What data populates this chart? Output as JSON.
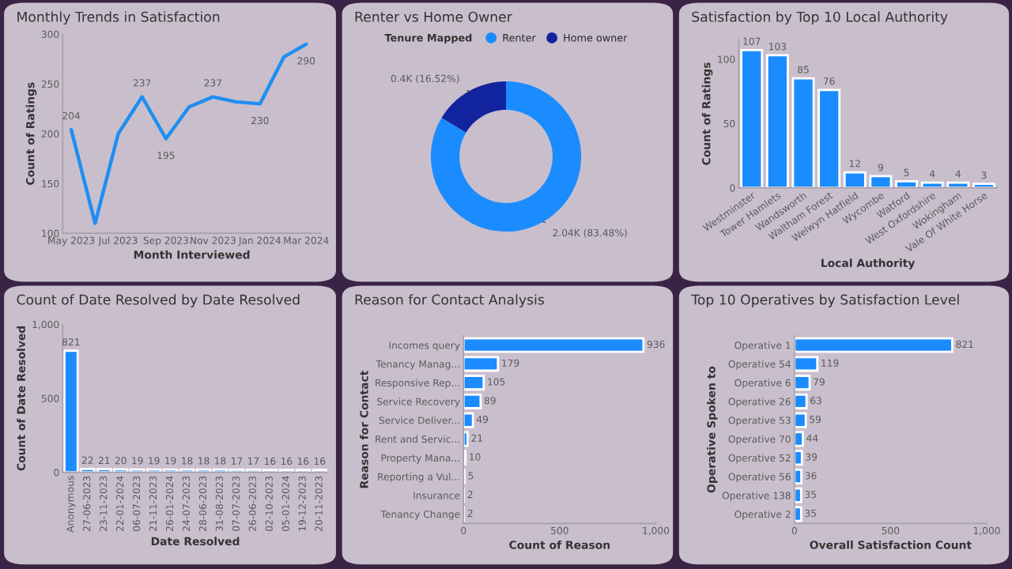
{
  "chart_data": [
    {
      "type": "line",
      "title": "Monthly Trends in Satisfaction",
      "xlabel": "Month Interviewed",
      "ylabel": "Count of Ratings",
      "x": [
        "2023-05",
        "2023-06",
        "2023-07",
        "2023-08",
        "2023-09",
        "2023-10",
        "2023-11",
        "2023-12",
        "2024-01",
        "2024-02",
        "2024-03"
      ],
      "values": [
        204,
        110,
        200,
        237,
        195,
        227,
        237,
        232,
        230,
        277,
        290
      ],
      "value_labels": [
        "204",
        null,
        null,
        "237",
        "195",
        null,
        "237",
        null,
        "230",
        null,
        "290"
      ],
      "color": "#1f8ef1",
      "marker": "none",
      "line_style": "solid",
      "xlim": [
        "2023-04-20",
        "2024-03-20"
      ],
      "xticks": [
        {
          "value": "2023-05",
          "label": "May 2023"
        },
        {
          "value": "2023-07",
          "label": "Jul 2023"
        },
        {
          "value": "2023-09",
          "label": "Sep 2023"
        },
        {
          "value": "2023-11",
          "label": "Nov 2023"
        },
        {
          "value": "2024-01",
          "label": "Jan 2024"
        },
        {
          "value": "2024-03",
          "label": "Mar 2024"
        }
      ],
      "ylim": [
        100,
        300
      ],
      "yticks": [
        100,
        150,
        200,
        250,
        300
      ]
    },
    {
      "type": "donut",
      "title": "Renter vs Home Owner",
      "legend_title": "Tenure Mapped",
      "legend": "top",
      "categories": [
        "Renter",
        "Home owner"
      ],
      "values": [
        2040,
        400
      ],
      "colors": [
        "#1a8cff",
        "#12239e"
      ],
      "value_labels": [
        "2.04K (83.48%)",
        "0.4K (16.52%)"
      ]
    },
    {
      "type": "bar",
      "title": "Satisfaction by Top 10 Local Authority",
      "xlabel": "Local Authority",
      "ylabel": "Count of Ratings",
      "categories": [
        "Westminster",
        "Tower Hamlets",
        "Wandsworth",
        "Waltham Forest",
        "Welwyn Hatfield",
        "Wycombe",
        "Watford",
        "West Oxfordshire",
        "Wokingham",
        "Vale Of White Horse"
      ],
      "values": [
        107,
        103,
        85,
        76,
        12,
        9,
        5,
        4,
        4,
        3
      ],
      "color": "#1a8cff",
      "data_labels": true,
      "ylim": [
        0,
        115
      ],
      "yticks": [
        0,
        50,
        100
      ]
    },
    {
      "type": "bar",
      "title": "Count of Date Resolved by Date Resolved",
      "xlabel": "Date Resolved",
      "ylabel": "Count of Date Resolved",
      "categories": [
        "Anonymous",
        "27-06-2023",
        "23-11-2023",
        "22-01-2024",
        "06-07-2023",
        "21-11-2023",
        "26-01-2024",
        "24-07-2023",
        "28-06-2023",
        "31-08-2023",
        "07-07-2023",
        "26-06-2023",
        "02-10-2023",
        "05-01-2024",
        "19-12-2023",
        "20-11-2023"
      ],
      "values": [
        821,
        22,
        21,
        20,
        19,
        19,
        19,
        18,
        18,
        18,
        17,
        17,
        16,
        16,
        16,
        16
      ],
      "color": "#1a8cff",
      "data_labels": true,
      "ylim": [
        0,
        1000
      ],
      "yticks": [
        0,
        500,
        {
          "value": 1000,
          "label": "1,000"
        }
      ]
    },
    {
      "type": "bar",
      "orientation": "horizontal",
      "title": "Reason for Contact Analysis",
      "xlabel": "Count of Reason",
      "ylabel": "Reason for Contact",
      "categories": [
        "Incomes query",
        "Tenancy Manag...",
        "Responsive Rep...",
        "Service Recovery",
        "Service Deliver...",
        "Rent and Servic...",
        "Property Mana...",
        "Reporting a Vul...",
        "Insurance",
        "Tenancy Change"
      ],
      "values": [
        936,
        179,
        105,
        89,
        49,
        21,
        10,
        5,
        2,
        2
      ],
      "color": "#1a8cff",
      "data_labels": true,
      "xlim": [
        0,
        1000
      ],
      "xticks": [
        0,
        500,
        {
          "value": 1000,
          "label": "1,000"
        }
      ]
    },
    {
      "type": "bar",
      "orientation": "horizontal",
      "title": "Top 10 Operatives by Satisfaction Level",
      "xlabel": "Overall Satisfaction Count",
      "ylabel": "Operative Spoken to",
      "categories": [
        "Operative 1",
        "Operative 54",
        "Operative 6",
        "Operative 26",
        "Operative 53",
        "Operative 70",
        "Operative 52",
        "Operative 56",
        "Operative 138",
        "Operative 2"
      ],
      "values": [
        821,
        119,
        79,
        63,
        59,
        44,
        39,
        36,
        35,
        35
      ],
      "color": "#1a8cff",
      "data_labels": true,
      "xlim": [
        0,
        1000
      ],
      "xticks": [
        0,
        500,
        {
          "value": 1000,
          "label": "1,000"
        }
      ]
    }
  ]
}
